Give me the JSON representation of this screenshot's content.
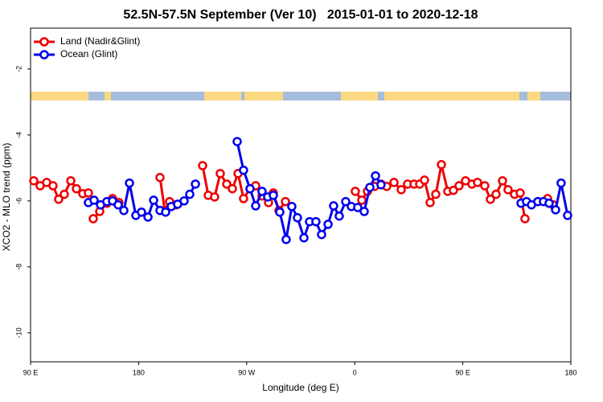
{
  "chart_data": {
    "type": "line",
    "title": "52.5N-57.5N September (Ver 10)   2015-01-01 to 2020-12-18",
    "x_label": "Longitude (deg E)",
    "y_label": "XCO2 - MLO trend (ppm)",
    "xlim": [
      90,
      540
    ],
    "ylim": [
      -10.88,
      -0.76
    ],
    "xticks": [
      {
        "value": 90,
        "label": "90 E"
      },
      180,
      {
        "value": 270,
        "label": "90 W"
      },
      {
        "value": 360,
        "label": "0"
      },
      {
        "value": 450,
        "label": "90 E"
      },
      {
        "value": 540,
        "label": "180"
      }
    ],
    "yticks": [
      -2,
      -4,
      -6,
      -8,
      -10
    ],
    "legend": "top-left",
    "series": [
      {
        "name": "Land (Nadir&Glint)",
        "color": "#ee0000",
        "x": [
          92.7,
          98.0,
          103.4,
          108.7,
          113.4,
          118.1,
          123.5,
          128.2,
          133.5,
          138.2,
          null,
          142.2,
          147.6,
          153.6,
          158.3,
          163.6,
          null,
          197.8,
          201.8,
          205.8,
          211.2,
          null,
          233.3,
          238.0,
          243.3,
          248.0,
          253.4,
          258.1,
          262.8,
          267.4,
          272.8,
          277.5,
          282.8,
          288.2,
          292.2,
          296.9,
          302.3,
          null,
          360.5,
          365.9,
          370.6,
          376.6,
          381.9,
          386.6,
          392.7,
          398.7,
          404.0,
          409.4,
          414.1,
          418.1,
          422.8,
          427.5,
          432.2,
          437.5,
          442.2,
          446.9,
          452.3,
          457.6,
          462.3,
          468.3,
          473.0,
          477.7,
          483.1,
          487.7,
          493.1,
          497.8,
          501.8,
          null,
          520.6,
          525.3
        ],
        "values": [
          -5.39,
          -5.54,
          -5.44,
          -5.54,
          -5.95,
          -5.8,
          -5.39,
          -5.63,
          -5.78,
          -5.76,
          null,
          -6.54,
          -6.32,
          -6.07,
          -5.93,
          -6.05,
          null,
          -5.29,
          -6.29,
          -6.02,
          -6.12,
          null,
          -4.93,
          -5.83,
          -5.88,
          -5.17,
          -5.49,
          -5.63,
          -5.17,
          -5.93,
          -5.63,
          -5.54,
          -5.85,
          -6.05,
          -5.76,
          -6.29,
          -6.02,
          null,
          -5.71,
          -5.98,
          -5.71,
          -5.56,
          -5.49,
          -5.56,
          -5.44,
          -5.66,
          -5.49,
          -5.49,
          -5.49,
          -5.37,
          -6.05,
          -5.8,
          -4.9,
          -5.71,
          -5.68,
          -5.54,
          -5.39,
          -5.49,
          -5.44,
          -5.54,
          -5.95,
          -5.8,
          -5.39,
          -5.66,
          -5.8,
          -5.76,
          -6.54,
          null,
          -5.93,
          -6.12
        ]
      },
      {
        "name": "Ocean (Glint)",
        "color": "#0000ee",
        "x": [
          138.2,
          142.9,
          148.3,
          153.6,
          158.3,
          163.0,
          167.7,
          172.4,
          177.7,
          182.4,
          187.8,
          192.5,
          197.8,
          202.5,
          207.2,
          212.5,
          217.9,
          222.6,
          227.3,
          null,
          262.1,
          267.4,
          272.8,
          277.5,
          282.8,
          287.5,
          292.2,
          297.6,
          302.9,
          307.6,
          312.3,
          317.7,
          322.4,
          327.7,
          332.4,
          337.8,
          342.4,
          347.1,
          352.5,
          357.2,
          362.5,
          367.9,
          372.6,
          377.3,
          381.9,
          null,
          498.5,
          503.1,
          507.2,
          512.5,
          517.2,
          521.9,
          527.3,
          531.9,
          537.3
        ],
        "values": [
          -6.05,
          -5.98,
          -6.12,
          -6.02,
          -6.0,
          -6.12,
          -6.29,
          -5.46,
          -6.44,
          -6.34,
          -6.49,
          -5.98,
          -6.29,
          -6.34,
          -6.17,
          -6.1,
          -6.0,
          -5.8,
          -5.49,
          null,
          -4.2,
          -5.07,
          -5.63,
          -6.15,
          -5.71,
          -5.88,
          -5.83,
          -6.34,
          -7.17,
          -6.17,
          -6.51,
          -7.12,
          -6.63,
          -6.63,
          -7.02,
          -6.71,
          -6.15,
          -6.46,
          -6.02,
          -6.17,
          -6.2,
          -6.32,
          -5.59,
          -5.24,
          -5.51,
          null,
          -6.07,
          -6.02,
          -6.12,
          -6.02,
          -6.02,
          -6.07,
          -6.27,
          -5.46,
          -6.44
        ]
      }
    ]
  }
}
